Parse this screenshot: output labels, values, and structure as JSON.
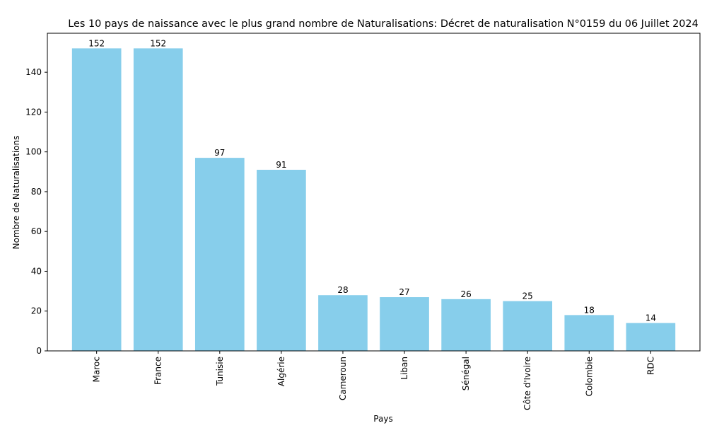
{
  "chart_data": {
    "type": "bar",
    "title": "Les 10 pays de naissance avec le plus grand nombre de Naturalisations: Décret de naturalisation N°0159 du 06 Juillet 2024",
    "xlabel": "Pays",
    "ylabel": "Nombre de Naturalisations",
    "categories": [
      "Maroc",
      "France",
      "Tunisie",
      "Algérie",
      "Cameroun",
      "Liban",
      "Sénégal",
      "Côte d'Ivoire",
      "Colombie",
      "RDC"
    ],
    "values": [
      152,
      152,
      97,
      91,
      28,
      27,
      26,
      25,
      18,
      14
    ],
    "ylim": [
      0,
      159.6
    ],
    "yticks": [
      0,
      20,
      40,
      60,
      80,
      100,
      120,
      140
    ],
    "bar_color": "#87ceeb",
    "grid": false,
    "legend": "none"
  }
}
